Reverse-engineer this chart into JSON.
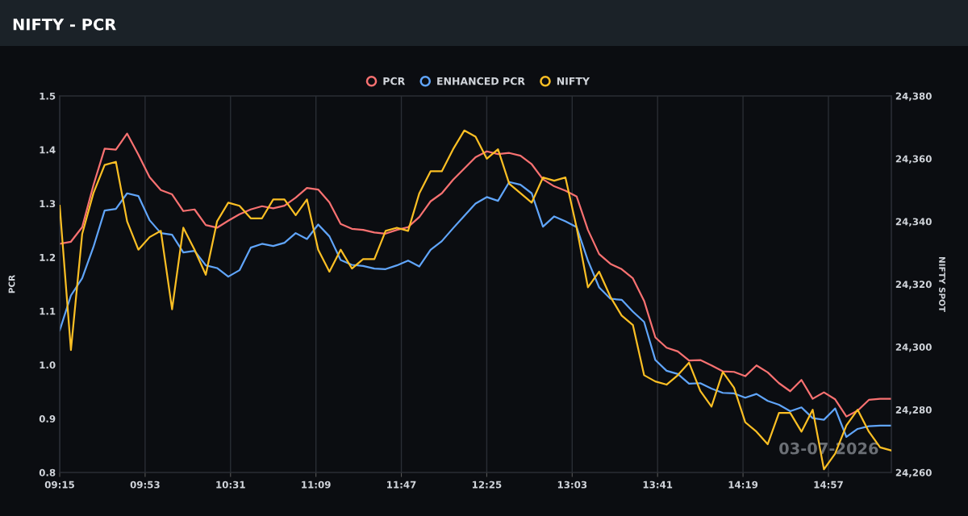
{
  "chart_data": {
    "type": "line",
    "title": "NIFTY - PCR",
    "ylabel": "PCR",
    "y2label": "NIFTY SPOT",
    "annotations": [
      "03-07-2026"
    ],
    "x": [
      9.25,
      9.3333,
      9.4167,
      9.5,
      9.5833,
      9.6667,
      9.75,
      9.8333,
      9.9167,
      10.0,
      10.0833,
      10.1667,
      10.25,
      10.3333,
      10.4167,
      10.5,
      10.5833,
      10.6667,
      10.75,
      10.8333,
      10.9167,
      11.0,
      11.0833,
      11.1667,
      11.25,
      11.3333,
      11.4167,
      11.5,
      11.5833,
      11.6667,
      11.75,
      11.8333,
      11.9167,
      12.0,
      12.0833,
      12.1667,
      12.25,
      12.3333,
      12.4167,
      12.5,
      12.5833,
      12.6667,
      12.75,
      12.8333,
      12.9167,
      13.0,
      13.0833,
      13.1667,
      13.25,
      13.3333,
      13.4167,
      13.5,
      13.5833,
      13.6667,
      13.75,
      13.8333,
      13.9167,
      14.0,
      14.0833,
      14.1667,
      14.25,
      14.3333,
      14.4167,
      14.5,
      14.5833,
      14.6667,
      14.75,
      14.8333,
      14.9167,
      15.0,
      15.0833,
      15.1667,
      15.25,
      15.3333,
      15.4167
    ],
    "xlim": [
      9.25,
      15.4167
    ],
    "xticks": [
      {
        "value": 9.25,
        "label": "09:15"
      },
      {
        "value": 9.8833,
        "label": "09:53"
      },
      {
        "value": 10.5167,
        "label": "10:31"
      },
      {
        "value": 11.15,
        "label": "11:09"
      },
      {
        "value": 11.7833,
        "label": "11:47"
      },
      {
        "value": 12.4167,
        "label": "12:25"
      },
      {
        "value": 13.05,
        "label": "13:03"
      },
      {
        "value": 13.6833,
        "label": "13:41"
      },
      {
        "value": 14.3167,
        "label": "14:19"
      },
      {
        "value": 14.95,
        "label": "14:57"
      }
    ],
    "ylim": [
      0.8,
      1.5
    ],
    "yticks": [
      {
        "value": 0.8,
        "label": "0.8"
      },
      {
        "value": 0.9,
        "label": "0.9"
      },
      {
        "value": 1.0,
        "label": "1.0"
      },
      {
        "value": 1.1,
        "label": "1.1"
      },
      {
        "value": 1.2,
        "label": "1.2"
      },
      {
        "value": 1.3,
        "label": "1.3"
      },
      {
        "value": 1.4,
        "label": "1.4"
      },
      {
        "value": 1.5,
        "label": "1.5"
      }
    ],
    "y2lim": [
      24260,
      24380
    ],
    "y2ticks": [
      {
        "value": 24260,
        "label": "24,260"
      },
      {
        "value": 24280,
        "label": "24,280"
      },
      {
        "value": 24300,
        "label": "24,300"
      },
      {
        "value": 24320,
        "label": "24,320"
      },
      {
        "value": 24340,
        "label": "24,340"
      },
      {
        "value": 24360,
        "label": "24,360"
      },
      {
        "value": 24380,
        "label": "24,380"
      }
    ],
    "grid": "x",
    "legend": "top",
    "marker": "none",
    "line_style": "solid",
    "series": [
      {
        "name": "PCR",
        "color": "#f87171",
        "values": [
          1.225,
          1.229,
          1.256,
          1.334,
          1.402,
          1.4,
          1.43,
          1.391,
          1.349,
          1.325,
          1.317,
          1.286,
          1.289,
          1.26,
          1.255,
          1.268,
          1.28,
          1.289,
          1.295,
          1.291,
          1.296,
          1.311,
          1.329,
          1.326,
          1.302,
          1.262,
          1.253,
          1.251,
          1.246,
          1.244,
          1.251,
          1.256,
          1.275,
          1.304,
          1.319,
          1.344,
          1.365,
          1.386,
          1.397,
          1.392,
          1.394,
          1.389,
          1.373,
          1.345,
          1.332,
          1.324,
          1.313,
          1.251,
          1.206,
          1.188,
          1.178,
          1.161,
          1.119,
          1.051,
          1.032,
          1.025,
          1.008,
          1.009,
          0.999,
          0.988,
          0.987,
          0.979,
          0.999,
          0.986,
          0.966,
          0.951,
          0.972,
          0.937,
          0.949,
          0.936,
          0.904,
          0.915,
          0.935,
          0.937,
          0.937
        ]
      },
      {
        "name": "ENHANCED PCR",
        "color": "#60a5fa",
        "values": [
          1.064,
          1.129,
          1.161,
          1.219,
          1.287,
          1.29,
          1.319,
          1.314,
          1.269,
          1.245,
          1.242,
          1.209,
          1.212,
          1.185,
          1.18,
          1.164,
          1.176,
          1.218,
          1.225,
          1.221,
          1.227,
          1.245,
          1.234,
          1.261,
          1.239,
          1.195,
          1.186,
          1.184,
          1.179,
          1.178,
          1.185,
          1.194,
          1.183,
          1.214,
          1.23,
          1.254,
          1.277,
          1.3,
          1.312,
          1.305,
          1.34,
          1.335,
          1.319,
          1.257,
          1.276,
          1.267,
          1.256,
          1.194,
          1.144,
          1.123,
          1.121,
          1.099,
          1.08,
          1.009,
          0.989,
          0.983,
          0.965,
          0.966,
          0.956,
          0.948,
          0.947,
          0.939,
          0.946,
          0.933,
          0.926,
          0.914,
          0.921,
          0.901,
          0.898,
          0.919,
          0.866,
          0.881,
          0.886,
          0.887,
          0.887
        ]
      },
      {
        "name": "NIFTY",
        "color": "#fbbf24",
        "axis": "y2",
        "values": [
          24345,
          24299,
          24336,
          24349,
          24358,
          24359,
          24340,
          24331,
          24335,
          24337,
          24312,
          24338,
          24331,
          24323,
          24340,
          24346,
          24345,
          24341,
          24341,
          24347,
          24347,
          24342,
          24347,
          24331,
          24324,
          24331,
          24325,
          24328,
          24328,
          24337,
          24338,
          24337,
          24349,
          24356,
          24356,
          24363,
          24369,
          24367,
          24360,
          24363,
          24352,
          24349,
          24346,
          24354,
          24353,
          24354,
          24338,
          24319,
          24324,
          24316,
          24310,
          24307,
          24291,
          24289,
          24288,
          24291,
          24295,
          24286,
          24281,
          24292,
          24287,
          24276,
          24273,
          24269,
          24279,
          24279,
          24273,
          24280,
          24261,
          24266,
          24275,
          24280,
          24273,
          24268,
          24267
        ]
      }
    ]
  }
}
